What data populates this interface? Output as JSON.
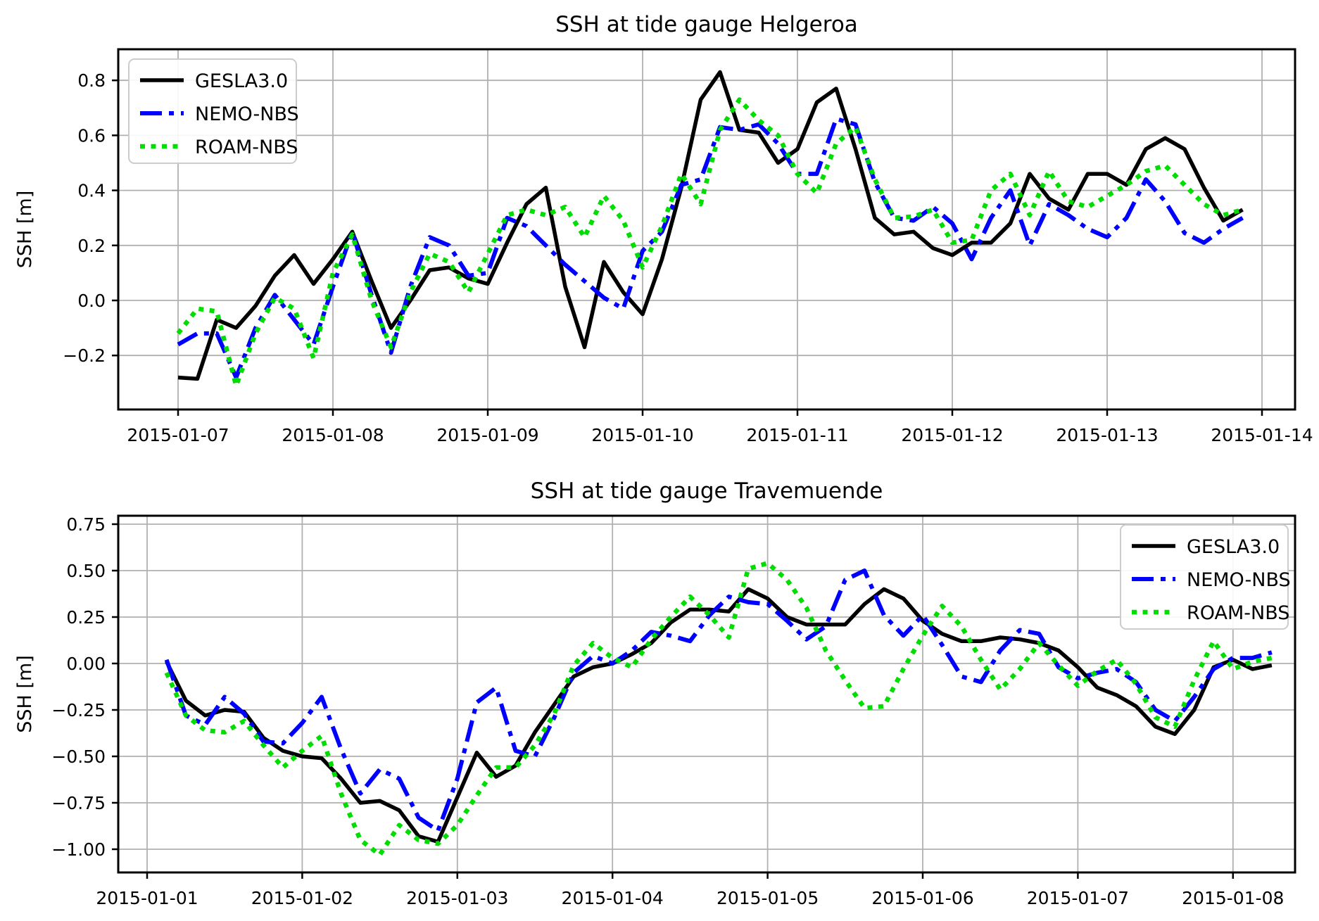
{
  "figure": {
    "background": "#ffffff",
    "grid_color": "#b0b0b0",
    "spine_color": "#000000",
    "legend_edge_color": "#cccccc",
    "legend_fill": "#ffffff"
  },
  "series_styles": [
    {
      "name": "GESLA3.0",
      "color": "#000000",
      "dash": "",
      "width": 5.5
    },
    {
      "name": "NEMO-NBS",
      "color": "#0000ff",
      "dash": "31 10 7 10",
      "width": 6
    },
    {
      "name": "ROAM-NBS",
      "color": "#00dd00",
      "dash": "7 8.5",
      "width": 6.5
    }
  ],
  "chart_data": [
    {
      "type": "line",
      "title": "SSH at tide gauge Helgeroa",
      "ylabel": "SSH [m]",
      "legend_position": "upper-left",
      "legend_entries": [
        "GESLA3.0",
        "NEMO-NBS",
        "ROAM-NBS"
      ],
      "grid": true,
      "x_tick_labels": [
        "2015-01-07",
        "2015-01-08",
        "2015-01-09",
        "2015-01-10",
        "2015-01-11",
        "2015-01-12",
        "2015-01-13",
        "2015-01-14"
      ],
      "y_ticks": [
        0.8,
        0.6,
        0.4,
        0.2,
        0.0,
        -0.2
      ],
      "y_tick_labels": [
        "0.8",
        "0.6",
        "0.4",
        "0.2",
        "0.0",
        "−0.2"
      ],
      "ylim": [
        -0.396,
        0.913
      ],
      "x_start_day": 0.0,
      "x_step_days": 0.125,
      "series": [
        {
          "name": "GESLA3.0",
          "values": [
            -0.28,
            -0.285,
            -0.07,
            -0.1,
            -0.02,
            0.09,
            0.165,
            0.06,
            0.15,
            0.25,
            0.07,
            -0.1,
            0.0,
            0.11,
            0.12,
            0.08,
            0.06,
            0.21,
            0.35,
            0.41,
            0.05,
            -0.17,
            0.14,
            0.03,
            -0.05,
            0.15,
            0.41,
            0.73,
            0.83,
            0.62,
            0.61,
            0.5,
            0.55,
            0.72,
            0.77,
            0.55,
            0.3,
            0.24,
            0.25,
            0.19,
            0.165,
            0.21,
            0.21,
            0.28,
            0.46,
            0.37,
            0.33,
            0.46,
            0.46,
            0.42,
            0.55,
            0.59,
            0.55,
            0.41,
            0.29,
            0.33
          ]
        },
        {
          "name": "NEMO-NBS",
          "values": [
            -0.16,
            -0.12,
            -0.12,
            -0.28,
            -0.1,
            0.02,
            -0.07,
            -0.16,
            0.05,
            0.25,
            0.02,
            -0.19,
            0.05,
            0.23,
            0.2,
            0.09,
            0.1,
            0.3,
            0.27,
            0.2,
            0.13,
            0.07,
            0.01,
            -0.03,
            0.18,
            0.25,
            0.42,
            0.44,
            0.63,
            0.62,
            0.64,
            0.57,
            0.46,
            0.46,
            0.66,
            0.64,
            0.43,
            0.3,
            0.29,
            0.34,
            0.28,
            0.15,
            0.3,
            0.4,
            0.2,
            0.35,
            0.31,
            0.26,
            0.23,
            0.3,
            0.44,
            0.36,
            0.245,
            0.21,
            0.26,
            0.3
          ]
        },
        {
          "name": "ROAM-NBS",
          "values": [
            -0.12,
            -0.03,
            -0.04,
            -0.31,
            -0.12,
            0.01,
            -0.03,
            -0.21,
            0.1,
            0.24,
            0.0,
            -0.17,
            0.03,
            0.17,
            0.14,
            0.03,
            0.17,
            0.31,
            0.33,
            0.31,
            0.34,
            0.23,
            0.38,
            0.29,
            0.12,
            0.27,
            0.46,
            0.35,
            0.62,
            0.73,
            0.655,
            0.6,
            0.46,
            0.39,
            0.57,
            0.63,
            0.44,
            0.3,
            0.305,
            0.33,
            0.21,
            0.22,
            0.4,
            0.46,
            0.31,
            0.47,
            0.36,
            0.34,
            0.38,
            0.42,
            0.47,
            0.49,
            0.42,
            0.35,
            0.31,
            0.33
          ]
        }
      ]
    },
    {
      "type": "line",
      "title": "SSH at tide gauge Travemuende",
      "ylabel": "SSH [m]",
      "legend_position": "upper-right",
      "legend_entries": [
        "GESLA3.0",
        "NEMO-NBS",
        "ROAM-NBS"
      ],
      "grid": true,
      "x_tick_labels": [
        "2015-01-01",
        "2015-01-02",
        "2015-01-03",
        "2015-01-04",
        "2015-01-05",
        "2015-01-06",
        "2015-01-07",
        "2015-01-08"
      ],
      "y_ticks": [
        0.75,
        0.5,
        0.25,
        0.0,
        -0.25,
        -0.5,
        -0.75,
        -1.0
      ],
      "y_tick_labels": [
        "0.75",
        "0.50",
        "0.25",
        "0.00",
        "−0.25",
        "−0.50",
        "−0.75",
        "−1.00"
      ],
      "ylim": [
        -1.125,
        0.795
      ],
      "x_start_day": 0.125,
      "x_step_days": 0.125,
      "series": [
        {
          "name": "GESLA3.0",
          "values": [
            0.01,
            -0.2,
            -0.28,
            -0.25,
            -0.26,
            -0.4,
            -0.47,
            -0.5,
            -0.51,
            -0.62,
            -0.75,
            -0.74,
            -0.79,
            -0.93,
            -0.96,
            -0.72,
            -0.48,
            -0.61,
            -0.55,
            -0.37,
            -0.22,
            -0.07,
            -0.02,
            0.0,
            0.05,
            0.11,
            0.22,
            0.29,
            0.29,
            0.28,
            0.4,
            0.35,
            0.25,
            0.21,
            0.21,
            0.21,
            0.32,
            0.4,
            0.35,
            0.23,
            0.16,
            0.12,
            0.12,
            0.14,
            0.13,
            0.11,
            0.07,
            -0.02,
            -0.13,
            -0.17,
            -0.23,
            -0.34,
            -0.38,
            -0.25,
            -0.02,
            0.02,
            -0.03,
            -0.01
          ]
        },
        {
          "name": "NEMO-NBS",
          "values": [
            0.02,
            -0.28,
            -0.33,
            -0.18,
            -0.27,
            -0.42,
            -0.43,
            -0.32,
            -0.18,
            -0.46,
            -0.7,
            -0.57,
            -0.62,
            -0.83,
            -0.9,
            -0.62,
            -0.21,
            -0.13,
            -0.47,
            -0.5,
            -0.29,
            -0.05,
            0.04,
            0.0,
            0.07,
            0.17,
            0.15,
            0.12,
            0.26,
            0.36,
            0.33,
            0.32,
            0.23,
            0.13,
            0.2,
            0.45,
            0.5,
            0.26,
            0.15,
            0.26,
            0.1,
            -0.07,
            -0.1,
            0.07,
            0.18,
            0.16,
            -0.02,
            -0.08,
            -0.05,
            -0.03,
            -0.1,
            -0.25,
            -0.31,
            -0.18,
            -0.03,
            0.03,
            0.03,
            0.06
          ]
        },
        {
          "name": "ROAM-NBS",
          "values": [
            -0.05,
            -0.28,
            -0.36,
            -0.37,
            -0.31,
            -0.44,
            -0.56,
            -0.47,
            -0.39,
            -0.7,
            -0.95,
            -1.03,
            -0.87,
            -0.95,
            -0.97,
            -0.87,
            -0.71,
            -0.56,
            -0.56,
            -0.44,
            -0.27,
            -0.01,
            0.11,
            0.03,
            -0.02,
            0.13,
            0.25,
            0.36,
            0.26,
            0.14,
            0.51,
            0.54,
            0.45,
            0.3,
            0.07,
            -0.09,
            -0.24,
            -0.23,
            -0.03,
            0.15,
            0.31,
            0.2,
            0.02,
            -0.14,
            -0.03,
            0.11,
            -0.01,
            -0.12,
            -0.04,
            0.02,
            -0.11,
            -0.29,
            -0.34,
            -0.09,
            0.12,
            -0.03,
            0.01,
            0.03
          ]
        }
      ]
    }
  ]
}
